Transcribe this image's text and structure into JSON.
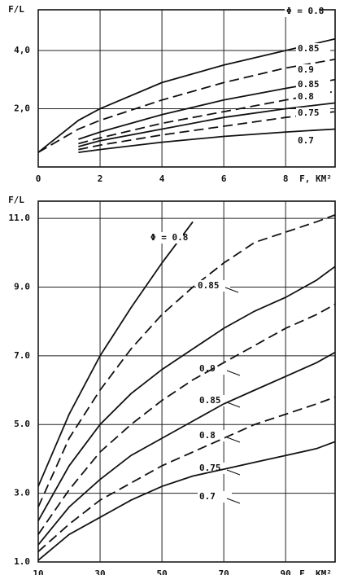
{
  "chart_data": [
    {
      "type": "line",
      "y_label": "F/L",
      "x_label": "F, KM²",
      "x": [
        0,
        1.3,
        2,
        4,
        6,
        8,
        9.6
      ],
      "xlim": [
        0,
        9.6
      ],
      "ylim": [
        0,
        5.4
      ],
      "xticks": [
        0,
        2,
        4,
        6,
        8
      ],
      "yticks": [
        {
          "value": 2,
          "label": "2,0"
        },
        {
          "value": 4,
          "label": "4,0"
        }
      ],
      "grid": true,
      "series": [
        {
          "name": "Φ = 0.8",
          "color": "#111111",
          "line_style": "solid",
          "values": [
            0.5,
            1.6,
            2.0,
            2.9,
            3.5,
            4.0,
            4.4
          ]
        },
        {
          "name": "0.85",
          "color": "#111111",
          "line_style": "dashed",
          "values": [
            0.5,
            1.3,
            1.6,
            2.3,
            2.9,
            3.4,
            3.7
          ]
        },
        {
          "name": "0.9",
          "color": "#111111",
          "line_style": "solid",
          "values": [
            null,
            0.95,
            1.2,
            1.8,
            2.3,
            2.7,
            3.0
          ]
        },
        {
          "name": "0.85",
          "color": "#111111",
          "line_style": "dashed",
          "values": [
            null,
            0.8,
            1.0,
            1.5,
            1.9,
            2.3,
            2.6
          ]
        },
        {
          "name": "0.8",
          "color": "#111111",
          "line_style": "solid",
          "values": [
            null,
            0.7,
            0.9,
            1.3,
            1.7,
            2.0,
            2.2
          ]
        },
        {
          "name": "0.75",
          "color": "#111111",
          "line_style": "dashed",
          "values": [
            null,
            0.6,
            0.75,
            1.1,
            1.4,
            1.7,
            1.9
          ]
        },
        {
          "name": "0.7",
          "color": "#111111",
          "line_style": "solid",
          "values": [
            null,
            0.5,
            0.6,
            0.85,
            1.05,
            1.2,
            1.3
          ]
        }
      ]
    },
    {
      "type": "line",
      "y_label": "F/L",
      "x_label": "F, KM²",
      "x": [
        10,
        20,
        30,
        40,
        50,
        60,
        70,
        80,
        90,
        100,
        106
      ],
      "xlim": [
        10,
        106
      ],
      "ylim": [
        1,
        11.5
      ],
      "xticks": [
        10,
        30,
        50,
        70,
        90
      ],
      "yticks": [
        {
          "value": 1,
          "label": "1.0"
        },
        {
          "value": 3,
          "label": "3.0"
        },
        {
          "value": 5,
          "label": "5.0"
        },
        {
          "value": 7,
          "label": "7.0"
        },
        {
          "value": 9,
          "label": "9.0"
        },
        {
          "value": 11,
          "label": "11.0"
        }
      ],
      "grid": true,
      "series": [
        {
          "name": "Φ = 0.8",
          "color": "#111111",
          "line_style": "solid",
          "values": [
            3.2,
            5.3,
            7.0,
            8.4,
            9.7,
            10.9,
            null,
            null,
            null,
            null,
            null
          ]
        },
        {
          "name": "0.85",
          "color": "#111111",
          "line_style": "dashed",
          "values": [
            2.6,
            4.6,
            6.0,
            7.2,
            8.2,
            9.0,
            9.7,
            10.3,
            10.6,
            10.9,
            11.1
          ]
        },
        {
          "name": "0.9",
          "color": "#111111",
          "line_style": "solid",
          "values": [
            2.2,
            3.8,
            5.0,
            5.9,
            6.6,
            7.2,
            7.8,
            8.3,
            8.7,
            9.2,
            9.6
          ]
        },
        {
          "name": "0.85",
          "color": "#111111",
          "line_style": "dashed",
          "values": [
            1.8,
            3.1,
            4.2,
            5.0,
            5.7,
            6.3,
            6.8,
            7.3,
            7.8,
            8.2,
            8.5
          ]
        },
        {
          "name": "0.8",
          "color": "#111111",
          "line_style": "solid",
          "values": [
            1.5,
            2.6,
            3.4,
            4.1,
            4.6,
            5.1,
            5.6,
            6.0,
            6.4,
            6.8,
            7.1
          ]
        },
        {
          "name": "0.75",
          "color": "#111111",
          "line_style": "dashed",
          "values": [
            1.3,
            2.1,
            2.8,
            3.3,
            3.8,
            4.2,
            4.6,
            5.0,
            5.3,
            5.6,
            5.8
          ]
        },
        {
          "name": "0.7",
          "color": "#111111",
          "line_style": "solid",
          "values": [
            1.05,
            1.8,
            2.3,
            2.8,
            3.2,
            3.5,
            3.7,
            3.9,
            4.1,
            4.3,
            4.5
          ]
        }
      ]
    }
  ]
}
